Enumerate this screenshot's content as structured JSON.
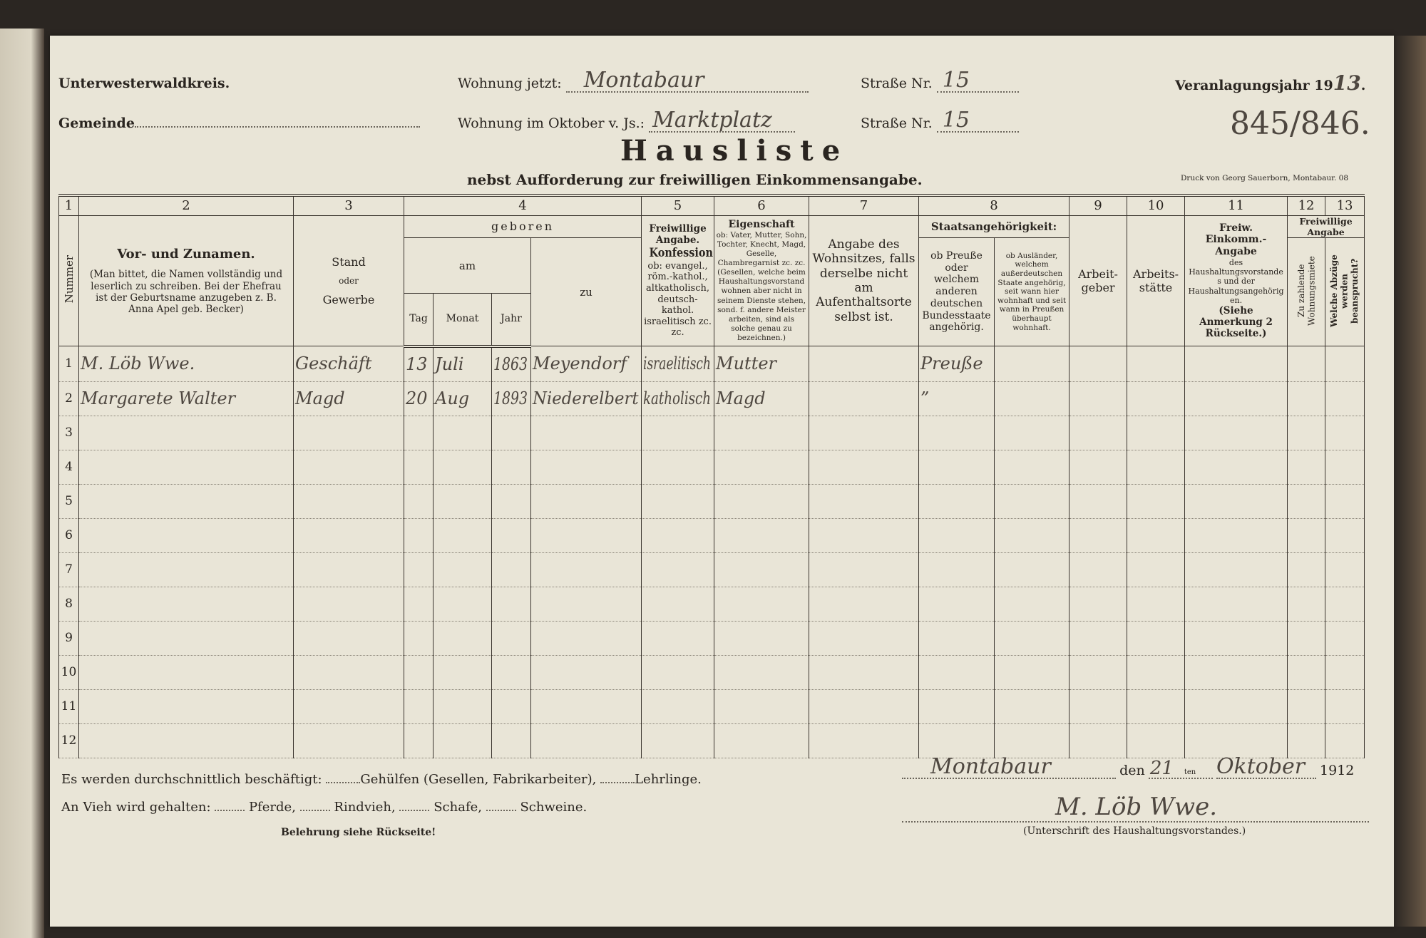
{
  "header": {
    "district": "Unterwesterwaldkreis.",
    "municipality_label": "Gemeinde",
    "residence_now_label": "Wohnung jetzt:",
    "residence_now_value": "Montabaur",
    "residence_october_label": "Wohnung im Oktober v. Js.:",
    "residence_october_value": "Marktplatz",
    "street_label": "Straße Nr.",
    "street_now_value": "15",
    "street_october_value": "15",
    "assessment_year_label": "Veranlagungsjahr 19",
    "assessment_year_value": "13",
    "reference_numbers": "845/846.",
    "title": "Hausliste",
    "subtitle": "nebst Aufforderung zur freiwilligen Einkommensangabe.",
    "printer": "Druck von Georg Sauerborn, Montabaur. 08"
  },
  "table": {
    "column_numbers": [
      "1",
      "2",
      "3",
      "4",
      "5",
      "6",
      "7",
      "8",
      "9",
      "10",
      "11",
      "12",
      "13"
    ],
    "col1": "Nummer",
    "col2_title": "Vor- und Zunamen.",
    "col2_note": "(Man bittet, die Namen vollständig und leserlich zu schreiben. Bei der Ehefrau ist der Geburtsname anzugeben z. B. Anna Apel geb. Becker)",
    "col3_a": "Stand",
    "col3_b": "oder",
    "col3_c": "Gewerbe",
    "col4_title": "geboren",
    "col4_am": "am",
    "col4_tag": "Tag",
    "col4_monat": "Monat",
    "col4_jahr": "Jahr",
    "col4_zu": "zu",
    "col5_title": "Freiwillige Angabe.",
    "col5_sub": "Konfession:",
    "col5_note": "ob: evangel., röm.-kathol., altkatholisch, deutsch-kathol. israelitisch zc. zc.",
    "col6_title": "Eigenschaft",
    "col6_note": "ob: Vater, Mutter, Sohn, Tochter, Knecht, Magd, Geselle, Chambregarnist zc. zc. (Gesellen, welche beim Haushaltungsvorstand wohnen aber nicht in seinem Dienste stehen, sond. f. andere Meister arbeiten, sind als solche genau zu bezeichnen.)",
    "col7": "Angabe des Wohnsitzes, falls derselbe nicht am Aufenthaltsorte selbst ist.",
    "col8_title": "Staatsangehörigkeit:",
    "col8a": "ob Preuße oder welchem anderen deutschen Bundesstaate angehörig.",
    "col8b": "ob Ausländer, welchem außerdeutschen Staate angehörig, seit wann hier wohnhaft und seit wann in Preußen überhaupt wohnhaft.",
    "col9": "Arbeit-geber",
    "col10": "Arbeits-stätte",
    "col11_title": "Freiw. Einkomm.-Angabe",
    "col11_note": "des Haushaltungsvorstandes und der Haushaltungsangehörigen.",
    "col11_ref": "(Siehe Anmerkung 2 Rückseite.)",
    "col1213_title": "Freiwillige Angabe",
    "col12": "Zu zahlende Wohnungsmiete",
    "col13": "Welche Abzüge werden beansprucht?",
    "rows": [
      {
        "num": "1",
        "name": "M. Löb Wwe.",
        "stand": "Geschäft",
        "tag": "13",
        "monat": "Juli",
        "jahr": "1863",
        "zu": "Meyendorf",
        "konfession": "israelitisch",
        "eigenschaft": "Mutter",
        "wohnsitz": "",
        "preusse": "Preuße",
        "auslaender": "",
        "arbeitgeber": "",
        "arbeitsstaette": "",
        "einkommen": "",
        "miete": "",
        "abzuege": ""
      },
      {
        "num": "2",
        "name": "Margarete Walter",
        "stand": "Magd",
        "tag": "20",
        "monat": "Aug",
        "jahr": "1893",
        "zu": "Niederelbert",
        "konfession": "katholisch",
        "eigenschaft": "Magd",
        "wohnsitz": "",
        "preusse": "”",
        "auslaender": "",
        "arbeitgeber": "",
        "arbeitsstaette": "",
        "einkommen": "",
        "miete": "",
        "abzuege": ""
      },
      {
        "num": "3"
      },
      {
        "num": "4"
      },
      {
        "num": "5"
      },
      {
        "num": "6"
      },
      {
        "num": "7"
      },
      {
        "num": "8"
      },
      {
        "num": "9"
      },
      {
        "num": "10"
      },
      {
        "num": "11"
      },
      {
        "num": "12"
      }
    ]
  },
  "footer": {
    "employed_prefix": "Es werden durchschnittlich beschäftigt:",
    "employed_helpers": "Gehülfen (Gesellen, Fabrikarbeiter),",
    "employed_apprentices": "Lehrlinge.",
    "livestock_prefix": "An Vieh wird gehalten:",
    "livestock_horses": "Pferde,",
    "livestock_cattle": "Rindvieh,",
    "livestock_sheep": "Schafe,",
    "livestock_pigs": "Schweine.",
    "instruction": "Belehrung siehe Rückseite!",
    "place_value": "Montabaur",
    "date_den": "den",
    "date_day": "21",
    "date_suffix": "ten",
    "date_month": "Oktober",
    "date_year": "1912",
    "signature": "M. Löb Wwe.",
    "signature_caption": "(Unterschrift des Haushaltungsvorstandes.)"
  }
}
